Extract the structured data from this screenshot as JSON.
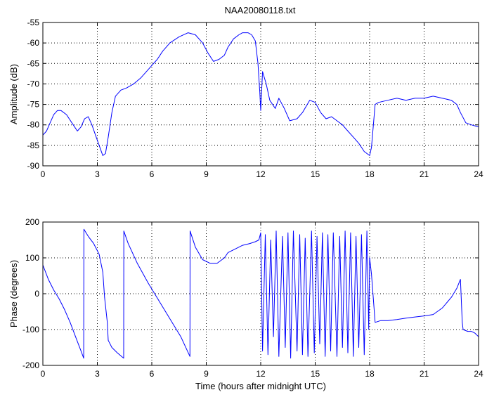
{
  "figure": {
    "title": "NAA20080118.txt",
    "colors": {
      "line": "#0000ff",
      "axes": "#000000",
      "grid": "#000000",
      "background": "#ffffff"
    }
  },
  "chart_data": [
    {
      "type": "line",
      "title": "NAA20080118.txt",
      "xlabel": "",
      "ylabel": "Amplitude (dB)",
      "xlim": [
        0,
        24
      ],
      "ylim": [
        -90,
        -55
      ],
      "xticks": [
        0,
        3,
        6,
        9,
        12,
        15,
        18,
        21,
        24
      ],
      "yticks": [
        -90,
        -85,
        -80,
        -75,
        -70,
        -65,
        -60,
        -55
      ],
      "grid": true,
      "series": [
        {
          "x": [
            0,
            0.2,
            0.4,
            0.6,
            0.8,
            1.0,
            1.3,
            1.6,
            1.9,
            2.1,
            2.3,
            2.5,
            2.7,
            2.9,
            3.1,
            3.3,
            3.45,
            3.6,
            3.8,
            4.0,
            4.3,
            4.6,
            5.0,
            5.4,
            5.7,
            6.0,
            6.3,
            6.6,
            7.0,
            7.5,
            8.0,
            8.4,
            8.8,
            9.1,
            9.4,
            9.7,
            10.0,
            10.2,
            10.5,
            10.8,
            11.0,
            11.3,
            11.5,
            11.7,
            11.85,
            11.95,
            12.0,
            12.1,
            12.3,
            12.5,
            12.8,
            13.0,
            13.3,
            13.6,
            14.0,
            14.3,
            14.7,
            15.0,
            15.3,
            15.6,
            15.9,
            16.2,
            16.5,
            16.8,
            17.1,
            17.4,
            17.7,
            18.0,
            18.1,
            18.3,
            18.5,
            19.0,
            19.5,
            20.0,
            20.5,
            21.0,
            21.5,
            22.0,
            22.5,
            22.8,
            23.0,
            23.3,
            23.6,
            24.0
          ],
          "values": [
            -82.5,
            -81.5,
            -79.5,
            -77.5,
            -76.5,
            -76.5,
            -77.5,
            -79.5,
            -81.5,
            -80.5,
            -78.5,
            -78,
            -80,
            -82.5,
            -85,
            -87.5,
            -87,
            -83,
            -77,
            -73,
            -71.5,
            -71,
            -70,
            -68.5,
            -67,
            -65.5,
            -64,
            -62,
            -60,
            -58.5,
            -57.5,
            -58,
            -60,
            -62.5,
            -64.5,
            -64,
            -63,
            -61,
            -59,
            -58,
            -57.5,
            -57.5,
            -58,
            -59.5,
            -65,
            -72,
            -76.5,
            -67,
            -70,
            -74,
            -76,
            -73.5,
            -76,
            -79,
            -78.5,
            -77,
            -74,
            -74.5,
            -77,
            -78.5,
            -78,
            -79,
            -80,
            -81.5,
            -83,
            -84.5,
            -86.5,
            -87.5,
            -85.5,
            -75,
            -74.5,
            -74,
            -73.5,
            -74,
            -73.5,
            -73.5,
            -73,
            -73.5,
            -74,
            -75,
            -77,
            -79.5,
            -80,
            -80.5
          ]
        }
      ]
    },
    {
      "type": "line",
      "title": "",
      "xlabel": "Time (hours after midnight UTC)",
      "ylabel": "Phase (degrees)",
      "xlim": [
        0,
        24
      ],
      "ylim": [
        -200,
        200
      ],
      "xticks": [
        0,
        3,
        6,
        9,
        12,
        15,
        18,
        21,
        24
      ],
      "yticks": [
        -200,
        -100,
        0,
        100,
        200
      ],
      "grid": true,
      "series": [
        {
          "x": [
            0,
            0.3,
            0.6,
            0.9,
            1.2,
            1.5,
            1.8,
            2.1,
            2.25,
            2.26,
            2.5,
            2.8,
            3.1,
            3.3,
            3.4,
            3.55,
            3.6,
            3.8,
            4.1,
            4.45,
            4.46,
            4.7,
            5.2,
            5.8,
            6.4,
            7.0,
            7.6,
            8.1,
            8.11,
            8.4,
            8.8,
            9.2,
            9.6,
            10.0,
            10.2,
            10.6,
            11.0,
            11.4,
            11.7,
            11.9,
            12.0,
            12.1,
            12.25,
            12.4,
            12.55,
            12.7,
            12.85,
            13.0,
            13.2,
            13.35,
            13.5,
            13.65,
            13.8,
            14.0,
            14.15,
            14.3,
            14.45,
            14.6,
            14.8,
            14.95,
            15.1,
            15.25,
            15.4,
            15.55,
            15.7,
            15.85,
            16.0,
            16.2,
            16.35,
            16.5,
            16.65,
            16.8,
            16.95,
            17.1,
            17.25,
            17.4,
            17.55,
            17.7,
            17.85,
            17.95,
            18.0,
            18.1,
            18.3,
            18.6,
            19.0,
            19.5,
            20.0,
            20.5,
            21.0,
            21.5,
            22.0,
            22.5,
            22.8,
            23.0,
            23.1,
            23.15,
            23.4,
            23.6,
            23.8,
            24.0
          ],
          "values": [
            80,
            40,
            10,
            -15,
            -45,
            -80,
            -120,
            -160,
            -180,
            180,
            160,
            140,
            110,
            60,
            -10,
            -80,
            -130,
            -150,
            -165,
            -180,
            175,
            140,
            85,
            30,
            -20,
            -70,
            -120,
            -175,
            175,
            130,
            95,
            85,
            85,
            100,
            115,
            125,
            135,
            140,
            145,
            150,
            170,
            -160,
            165,
            -170,
            150,
            -120,
            175,
            -175,
            160,
            -150,
            170,
            -180,
            175,
            -160,
            165,
            -170,
            155,
            -175,
            175,
            -165,
            160,
            -140,
            170,
            -175,
            165,
            -160,
            170,
            -175,
            160,
            -150,
            175,
            -165,
            170,
            -175,
            160,
            -150,
            165,
            -170,
            175,
            -100,
            100,
            55,
            -80,
            -75,
            -75,
            -72,
            -68,
            -65,
            -62,
            -58,
            -40,
            -10,
            15,
            40,
            -80,
            -100,
            -105,
            -105,
            -110,
            -120
          ]
        }
      ]
    }
  ]
}
